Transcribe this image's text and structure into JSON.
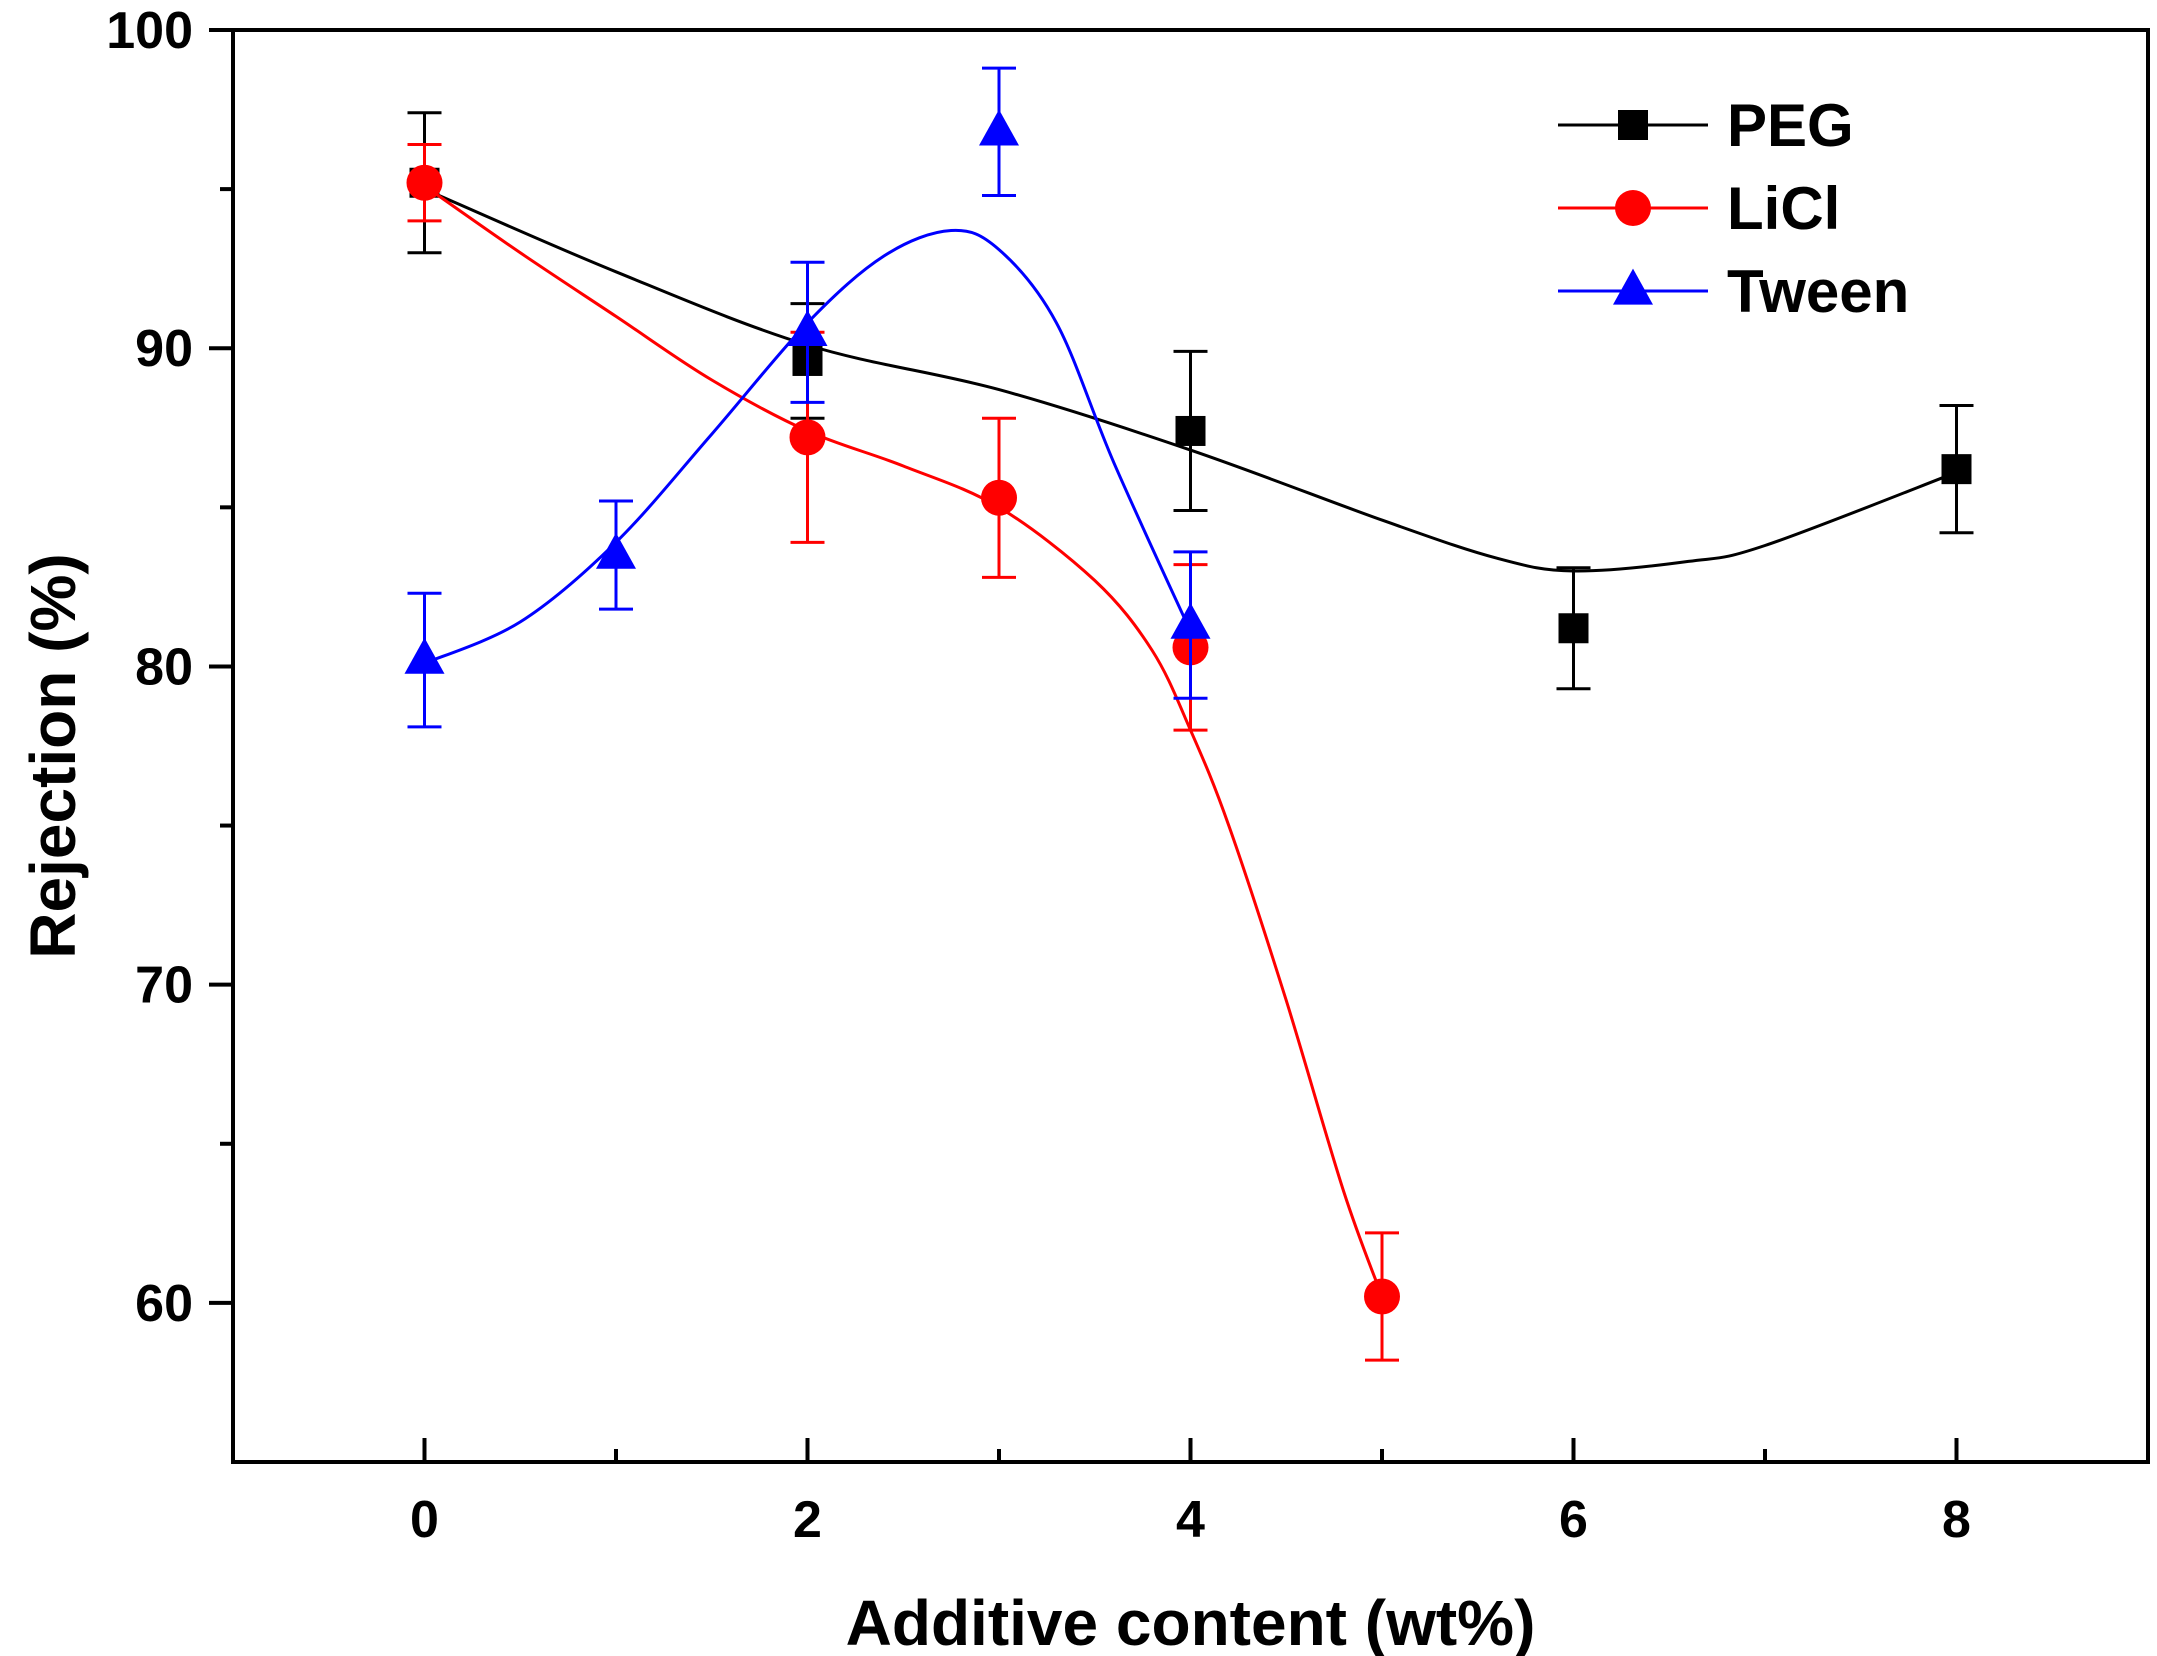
{
  "chart_data": {
    "type": "line",
    "title": "",
    "xlabel": "Additive content (wt%)",
    "ylabel": "Rejection (%)",
    "xlim": [
      -1,
      9
    ],
    "ylim": [
      55,
      100
    ],
    "x_ticks": [
      0,
      2,
      4,
      6,
      8
    ],
    "x_minor_ticks": [
      1,
      3,
      5,
      7
    ],
    "y_ticks": [
      60,
      70,
      80,
      90,
      100
    ],
    "y_minor_ticks": [
      65,
      75,
      85,
      95
    ],
    "grid": false,
    "legend_position": "top-right",
    "series": [
      {
        "name": "PEG",
        "color": "#000000",
        "marker": "square",
        "x": [
          0,
          2,
          4,
          6,
          8
        ],
        "y": [
          95.2,
          89.6,
          87.4,
          81.2,
          86.2
        ],
        "err": [
          2.2,
          1.8,
          2.5,
          1.9,
          2.0
        ],
        "curve": [
          [
            0,
            95.0
          ],
          [
            1,
            92.4
          ],
          [
            2,
            90.1
          ],
          [
            3,
            88.7
          ],
          [
            4,
            86.8
          ],
          [
            5,
            84.6
          ],
          [
            5.6,
            83.4
          ],
          [
            6,
            83.0
          ],
          [
            6.6,
            83.3
          ],
          [
            7,
            83.8
          ],
          [
            8,
            86.1
          ]
        ]
      },
      {
        "name": "LiCl",
        "color": "#ff0000",
        "marker": "circle",
        "x": [
          0,
          2,
          3,
          4,
          5
        ],
        "y": [
          95.2,
          87.2,
          85.3,
          80.6,
          60.2
        ],
        "err": [
          1.2,
          3.3,
          2.5,
          2.6,
          2.0
        ],
        "curve": [
          [
            0,
            95.1
          ],
          [
            0.5,
            93.0
          ],
          [
            1,
            91.0
          ],
          [
            1.5,
            89.0
          ],
          [
            2,
            87.4
          ],
          [
            2.5,
            86.3
          ],
          [
            3,
            85.0
          ],
          [
            3.5,
            82.7
          ],
          [
            3.8,
            80.5
          ],
          [
            4,
            78.0
          ],
          [
            4.2,
            75.0
          ],
          [
            4.5,
            69.5
          ],
          [
            4.8,
            63.5
          ],
          [
            5,
            60.2
          ]
        ]
      },
      {
        "name": "Tween",
        "color": "#0000ff",
        "marker": "triangle",
        "x": [
          0,
          1,
          2,
          3,
          4
        ],
        "y": [
          80.2,
          83.5,
          90.5,
          96.8,
          81.3
        ],
        "err": [
          2.1,
          1.7,
          2.2,
          2.0,
          2.3
        ],
        "curve": [
          [
            0,
            80.1
          ],
          [
            0.5,
            81.4
          ],
          [
            1,
            83.9
          ],
          [
            1.5,
            87.3
          ],
          [
            2,
            90.8
          ],
          [
            2.4,
            92.9
          ],
          [
            2.75,
            93.7
          ],
          [
            3,
            93.1
          ],
          [
            3.3,
            90.8
          ],
          [
            3.6,
            86.4
          ],
          [
            4,
            81.1
          ]
        ]
      }
    ]
  }
}
